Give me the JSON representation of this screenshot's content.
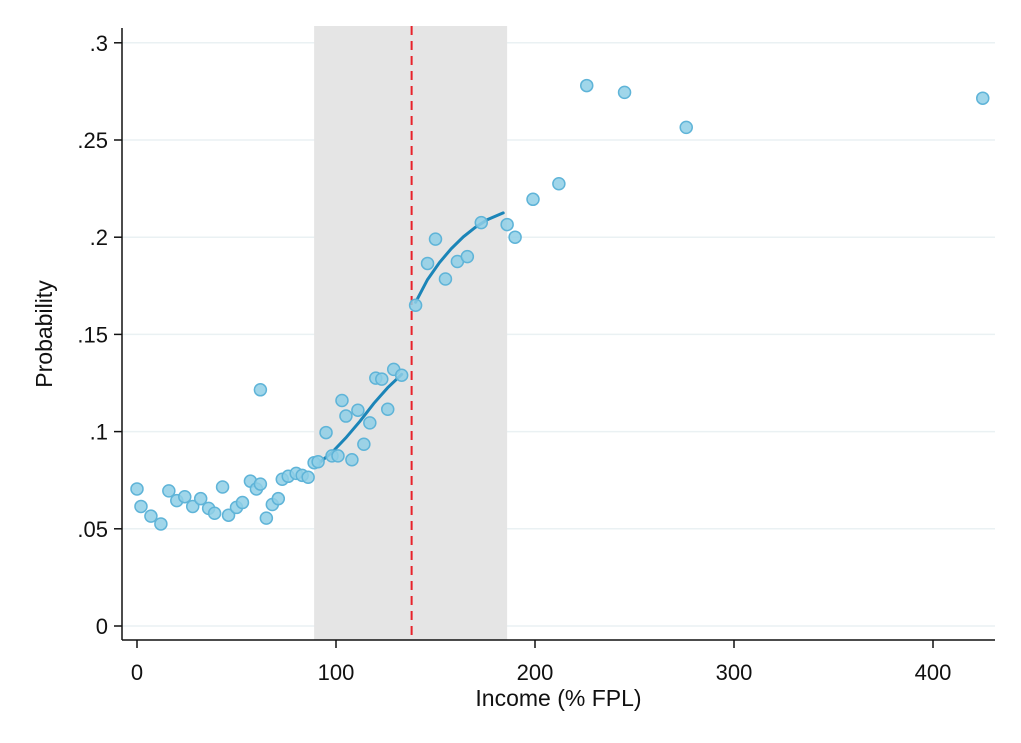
{
  "chart_data": {
    "type": "scatter",
    "title": "",
    "xlabel": "Income (% FPL)",
    "ylabel": "Probability",
    "xlim": [
      -6,
      430
    ],
    "ylim": [
      -0.007,
      0.307
    ],
    "xticks": [
      0,
      100,
      200,
      300,
      400
    ],
    "xtick_labels": [
      "0",
      "100",
      "200",
      "300",
      "400"
    ],
    "yticks": [
      0,
      0.05,
      0.1,
      0.15,
      0.2,
      0.25,
      0.3
    ],
    "ytick_labels": [
      "0",
      ".05",
      ".1",
      ".15",
      ".2",
      ".25",
      ".3"
    ],
    "grid": "horizontal",
    "shaded_band": {
      "x_from": 89,
      "x_to": 186,
      "color": "#e5e5e5"
    },
    "cutoff_line": {
      "x": 138,
      "color": "#e8222a",
      "style": "dashed"
    },
    "points": {
      "color": "#8fcfe6",
      "edge_color": "#5fb4d8",
      "x": [
        0,
        2,
        7,
        12,
        16,
        20,
        24,
        28,
        32,
        36,
        39,
        43,
        46,
        50,
        53,
        57,
        60,
        62,
        62,
        65,
        68,
        71,
        73,
        76,
        80,
        83,
        86,
        89,
        91,
        95,
        98,
        101,
        103,
        105,
        108,
        111,
        114,
        117,
        120,
        123,
        126,
        129,
        133,
        140,
        146,
        150,
        155,
        161,
        166,
        173,
        186,
        190,
        199,
        212,
        226,
        245,
        276,
        425
      ],
      "y": [
        0.0705,
        0.0615,
        0.0565,
        0.0525,
        0.0695,
        0.0645,
        0.0665,
        0.0615,
        0.0655,
        0.0605,
        0.058,
        0.0715,
        0.057,
        0.061,
        0.0635,
        0.0745,
        0.0705,
        0.1215,
        0.073,
        0.0555,
        0.0625,
        0.0655,
        0.0755,
        0.077,
        0.0785,
        0.0775,
        0.0765,
        0.084,
        0.0845,
        0.0995,
        0.0875,
        0.0875,
        0.116,
        0.108,
        0.0855,
        0.111,
        0.0935,
        0.1045,
        0.1275,
        0.127,
        0.1115,
        0.132,
        0.129,
        0.165,
        0.1865,
        0.199,
        0.1785,
        0.1875,
        0.19,
        0.2075,
        0.2065,
        0.2,
        0.2195,
        0.2275,
        0.278,
        0.2745,
        0.2565,
        0.2715
      ]
    },
    "fit_lines": {
      "color": "#1b85b8",
      "series": [
        {
          "x": [
            91,
            98,
            105,
            112,
            119,
            126,
            133
          ],
          "y": [
            0.0835,
            0.0893,
            0.0968,
            0.1053,
            0.1145,
            0.1226,
            0.1295
          ]
        },
        {
          "x": [
            140,
            146,
            152,
            158,
            164,
            170,
            176,
            184
          ],
          "y": [
            0.1665,
            0.1782,
            0.187,
            0.1942,
            0.2002,
            0.2051,
            0.209,
            0.2125
          ]
        }
      ]
    }
  }
}
